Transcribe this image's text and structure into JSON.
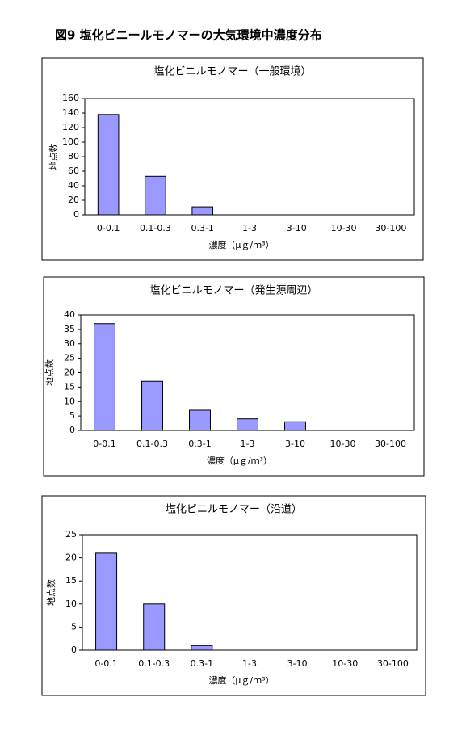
{
  "title": "図9 塩化ビニールモノマーの大気環境中濃度分布",
  "chart_data": [
    {
      "type": "bar",
      "title": "塩化ビニルモノマー（一般環境）",
      "x_label": "濃度（μｇ/ｍ³）",
      "y_label": "地点数",
      "categories": [
        "0-0.1",
        "0.1-0.3",
        "0.3-1",
        "1-3",
        "3-10",
        "10-30",
        "30-100"
      ],
      "values": [
        138,
        53,
        11,
        0,
        0,
        0,
        0
      ],
      "color": "#9999ff",
      "ylim": [
        0,
        160
      ],
      "yticks": [
        0,
        20,
        40,
        60,
        80,
        100,
        120,
        140,
        160
      ]
    },
    {
      "type": "bar",
      "title": "塩化ビニルモノマー（発生源周辺）",
      "x_label": "濃度（μｇ/ｍ³）",
      "y_label": "地点数",
      "categories": [
        "0-0.1",
        "0.1-0.3",
        "0.3-1",
        "1-3",
        "3-10",
        "10-30",
        "30-100"
      ],
      "values": [
        37,
        17,
        7,
        4,
        3,
        0,
        0
      ],
      "color": "#9999ff",
      "ylim": [
        0,
        40
      ],
      "yticks": [
        0,
        5,
        10,
        15,
        20,
        25,
        30,
        35,
        40
      ]
    },
    {
      "type": "bar",
      "title": "塩化ビニルモノマー（沿道）",
      "x_label": "濃度（μｇ/ｍ³）",
      "y_label": "地点数",
      "categories": [
        "0-0.1",
        "0.1-0.3",
        "0.3-1",
        "1-3",
        "3-10",
        "10-30",
        "30-100"
      ],
      "values": [
        21,
        10,
        1,
        0,
        0,
        0,
        0
      ],
      "color": "#9999ff",
      "ylim": [
        0,
        25
      ],
      "yticks": [
        0,
        5,
        10,
        15,
        20,
        25
      ]
    }
  ]
}
